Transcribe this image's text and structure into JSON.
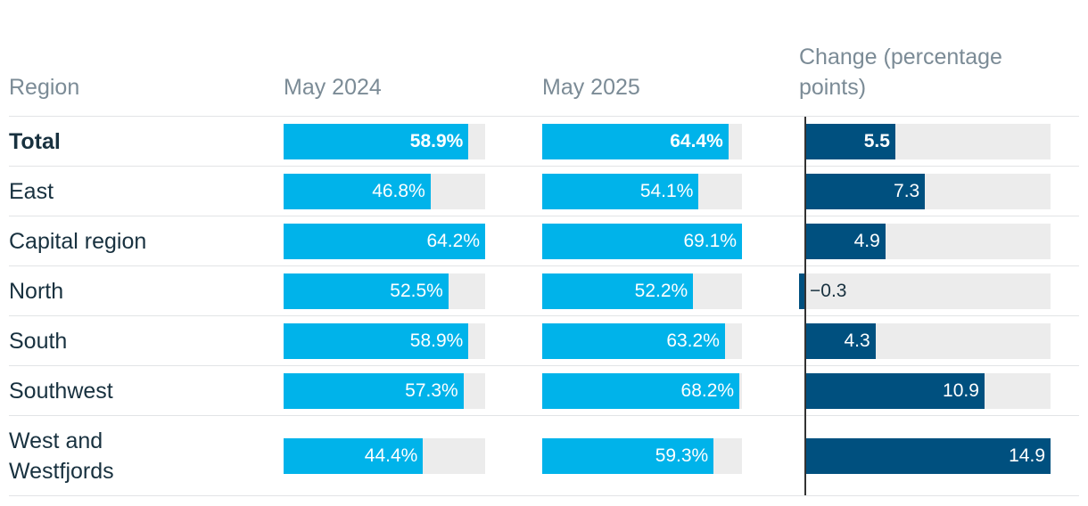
{
  "headers": {
    "region": "Region",
    "may2024": "May 2024",
    "may2025": "May 2025",
    "change": "Change (percentage points)"
  },
  "colors": {
    "percent_bar": "#00b3ea",
    "change_bar": "#00507f",
    "track": "#ececec",
    "header_text": "#7b8b96",
    "label_text": "#18313f"
  },
  "chart_data": {
    "type": "bar",
    "categories": [
      "Total",
      "East",
      "Capital region",
      "North",
      "South",
      "Southwest",
      "West and Westfjords"
    ],
    "series": [
      {
        "name": "May 2024",
        "unit": "%",
        "max": 64.2,
        "values": [
          58.9,
          46.8,
          64.2,
          52.5,
          58.9,
          57.3,
          44.4
        ],
        "labels": [
          "58.9%",
          "46.8%",
          "64.2%",
          "52.5%",
          "58.9%",
          "57.3%",
          "44.4%"
        ]
      },
      {
        "name": "May 2025",
        "unit": "%",
        "max": 69.1,
        "values": [
          64.4,
          54.1,
          69.1,
          52.2,
          63.2,
          68.2,
          59.3
        ],
        "labels": [
          "64.4%",
          "54.1%",
          "69.1%",
          "52.2%",
          "63.2%",
          "68.2%",
          "59.3%"
        ]
      },
      {
        "name": "Change (percentage points)",
        "unit": "pp",
        "max": 14.9,
        "values": [
          5.5,
          7.3,
          4.9,
          -0.3,
          4.3,
          10.9,
          14.9
        ],
        "labels": [
          "5.5",
          "7.3",
          "4.9",
          "−0.3",
          "4.3",
          "10.9",
          "14.9"
        ]
      }
    ],
    "bold_first_row": true
  }
}
